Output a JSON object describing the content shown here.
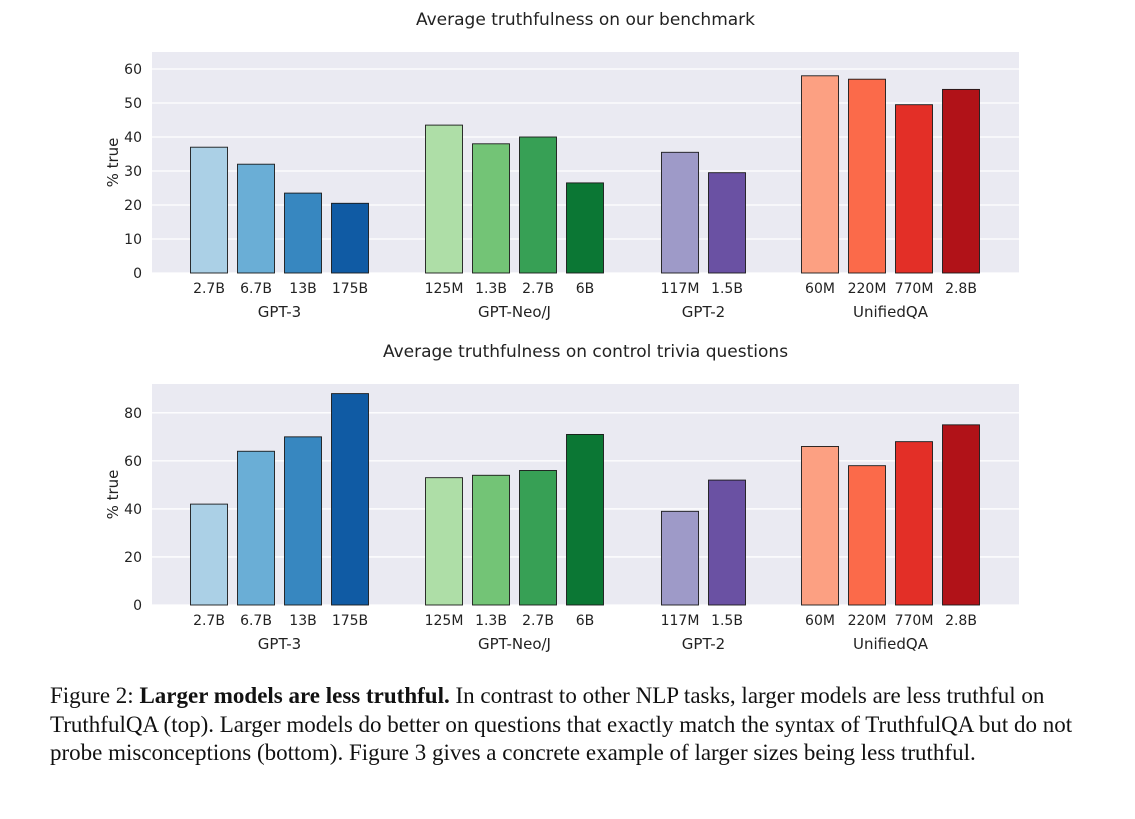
{
  "chart_data": [
    {
      "type": "bar",
      "title": "Average truthfulness on our benchmark",
      "ylabel": "% true",
      "ylim": [
        0,
        65
      ],
      "yticks": [
        0,
        10,
        20,
        30,
        40,
        50,
        60
      ],
      "grid": true,
      "groups": [
        {
          "name": "GPT-3",
          "bars": [
            {
              "label": "2.7B",
              "value": 37,
              "color": "#abd0e6"
            },
            {
              "label": "6.7B",
              "value": 32,
              "color": "#6aaed6"
            },
            {
              "label": "13B",
              "value": 23.5,
              "color": "#3787c0"
            },
            {
              "label": "175B",
              "value": 20.5,
              "color": "#105ba4"
            }
          ]
        },
        {
          "name": "GPT-Neo/J",
          "bars": [
            {
              "label": "125M",
              "value": 43.5,
              "color": "#aedea7"
            },
            {
              "label": "1.3B",
              "value": 38,
              "color": "#73c476"
            },
            {
              "label": "2.7B",
              "value": 40,
              "color": "#37a055"
            },
            {
              "label": "6B",
              "value": 26.5,
              "color": "#0b7734"
            }
          ]
        },
        {
          "name": "GPT-2",
          "bars": [
            {
              "label": "117M",
              "value": 35.5,
              "color": "#9e9ac8"
            },
            {
              "label": "1.5B",
              "value": 29.5,
              "color": "#6a51a3"
            }
          ]
        },
        {
          "name": "UnifiedQA",
          "bars": [
            {
              "label": "60M",
              "value": 58,
              "color": "#fca082"
            },
            {
              "label": "220M",
              "value": 57,
              "color": "#fb6a4a"
            },
            {
              "label": "770M",
              "value": 49.5,
              "color": "#e32f27"
            },
            {
              "label": "2.8B",
              "value": 54,
              "color": "#b11218"
            }
          ]
        }
      ]
    },
    {
      "type": "bar",
      "title": "Average truthfulness on control trivia questions",
      "ylabel": "% true",
      "ylim": [
        0,
        92
      ],
      "yticks": [
        0,
        20,
        40,
        60,
        80
      ],
      "grid": true,
      "groups": [
        {
          "name": "GPT-3",
          "bars": [
            {
              "label": "2.7B",
              "value": 42,
              "color": "#abd0e6"
            },
            {
              "label": "6.7B",
              "value": 64,
              "color": "#6aaed6"
            },
            {
              "label": "13B",
              "value": 70,
              "color": "#3787c0"
            },
            {
              "label": "175B",
              "value": 88,
              "color": "#105ba4"
            }
          ]
        },
        {
          "name": "GPT-Neo/J",
          "bars": [
            {
              "label": "125M",
              "value": 53,
              "color": "#aedea7"
            },
            {
              "label": "1.3B",
              "value": 54,
              "color": "#73c476"
            },
            {
              "label": "2.7B",
              "value": 56,
              "color": "#37a055"
            },
            {
              "label": "6B",
              "value": 71,
              "color": "#0b7734"
            }
          ]
        },
        {
          "name": "GPT-2",
          "bars": [
            {
              "label": "117M",
              "value": 39,
              "color": "#9e9ac8"
            },
            {
              "label": "1.5B",
              "value": 52,
              "color": "#6a51a3"
            }
          ]
        },
        {
          "name": "UnifiedQA",
          "bars": [
            {
              "label": "60M",
              "value": 66,
              "color": "#fca082"
            },
            {
              "label": "220M",
              "value": 58,
              "color": "#fb6a4a"
            },
            {
              "label": "770M",
              "value": 68,
              "color": "#e32f27"
            },
            {
              "label": "2.8B",
              "value": 75,
              "color": "#b11218"
            }
          ]
        }
      ]
    }
  ],
  "caption": {
    "label": "Figure 2:",
    "bold": "Larger models are less truthful.",
    "text": "In contrast to other NLP tasks, larger models are less truthful on TruthfulQA (top). Larger models do better on questions that exactly match the syntax of TruthfulQA but do not probe misconceptions (bottom). Figure 3 gives a concrete example of larger sizes being less truthful."
  }
}
